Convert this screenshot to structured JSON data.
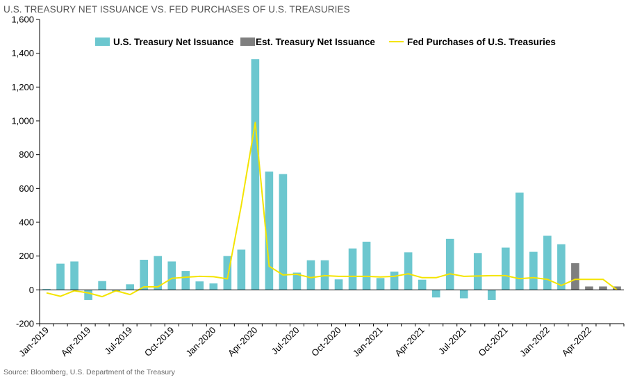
{
  "colors": {
    "actual": "#6cc7cf",
    "estimated": "#7f7f7f",
    "fed": "#f4e400",
    "axis": "#000000",
    "grid": "#d9d9d9"
  },
  "chart_data": {
    "type": "bar",
    "title": "U.S. TREASURY NET ISSUANCE VS. FED PURCHASES OF U.S. TREASURIES",
    "source": "Source: Bloomberg, U.S. Department of the Treasury",
    "ylim": [
      -200,
      1600
    ],
    "yticks": [
      -200,
      0,
      200,
      400,
      600,
      800,
      1000,
      1200,
      1400,
      1600
    ],
    "ytick_labels": [
      "-200",
      "0",
      "200",
      "400",
      "600",
      "800",
      "1,000",
      "1,200",
      "1,400",
      "1,600"
    ],
    "legend_position": "top",
    "months": [
      "Jan-2019",
      "Feb-2019",
      "Mar-2019",
      "Apr-2019",
      "May-2019",
      "Jun-2019",
      "Jul-2019",
      "Aug-2019",
      "Sep-2019",
      "Oct-2019",
      "Nov-2019",
      "Dec-2019",
      "Jan-2020",
      "Feb-2020",
      "Mar-2020",
      "Apr-2020",
      "May-2020",
      "Jun-2020",
      "Jul-2020",
      "Aug-2020",
      "Sep-2020",
      "Oct-2020",
      "Nov-2020",
      "Dec-2020",
      "Jan-2021",
      "Feb-2021",
      "Mar-2021",
      "Apr-2021",
      "May-2021",
      "Jun-2021",
      "Jul-2021",
      "Aug-2021",
      "Sep-2021",
      "Oct-2021",
      "Nov-2021",
      "Dec-2021",
      "Jan-2022",
      "Feb-2022",
      "Mar-2022",
      "Apr-2022",
      "May-2022",
      "Jun-2022"
    ],
    "xtick_labels": [
      {
        "index": 0,
        "label": "Jan-2019"
      },
      {
        "index": 3,
        "label": "Apr-2019"
      },
      {
        "index": 6,
        "label": "Jul-2019"
      },
      {
        "index": 9,
        "label": "Oct-2019"
      },
      {
        "index": 12,
        "label": "Jan-2020"
      },
      {
        "index": 15,
        "label": "Apr-2020"
      },
      {
        "index": 18,
        "label": "Jul-2020"
      },
      {
        "index": 21,
        "label": "Oct-2020"
      },
      {
        "index": 24,
        "label": "Jan-2021"
      },
      {
        "index": 27,
        "label": "Apr-2021"
      },
      {
        "index": 30,
        "label": "Jul-2021"
      },
      {
        "index": 33,
        "label": "Oct-2021"
      },
      {
        "index": 36,
        "label": "Jan-2022"
      },
      {
        "index": 39,
        "label": "Apr-2022"
      }
    ],
    "series": [
      {
        "name": "U.S. Treasury Net Issuance",
        "type": "bar",
        "values": [
          5,
          155,
          168,
          -60,
          52,
          -10,
          33,
          178,
          200,
          168,
          112,
          50,
          38,
          200,
          238,
          1365,
          700,
          685,
          102,
          175,
          175,
          62,
          245,
          285,
          70,
          108,
          222,
          60,
          -45,
          302,
          -50,
          218,
          -60,
          250,
          575,
          225,
          320,
          270,
          null,
          null,
          null,
          null
        ]
      },
      {
        "name": "Est. Treasury Net Issuance",
        "type": "bar",
        "values": [
          null,
          null,
          null,
          null,
          null,
          null,
          null,
          null,
          null,
          null,
          null,
          null,
          null,
          null,
          null,
          null,
          null,
          null,
          null,
          null,
          null,
          null,
          null,
          null,
          null,
          null,
          null,
          null,
          null,
          null,
          null,
          null,
          null,
          null,
          null,
          null,
          null,
          null,
          158,
          20,
          20,
          20
        ]
      },
      {
        "name": "Fed Purchases of U.S. Treasuries",
        "type": "line",
        "values": [
          -18,
          -38,
          -5,
          -18,
          -40,
          -5,
          -28,
          18,
          18,
          68,
          75,
          80,
          78,
          65,
          500,
          990,
          140,
          88,
          92,
          72,
          84,
          80,
          80,
          80,
          76,
          80,
          95,
          72,
          72,
          95,
          80,
          82,
          84,
          84,
          66,
          72,
          62,
          26,
          62,
          62,
          62,
          0
        ]
      }
    ]
  }
}
